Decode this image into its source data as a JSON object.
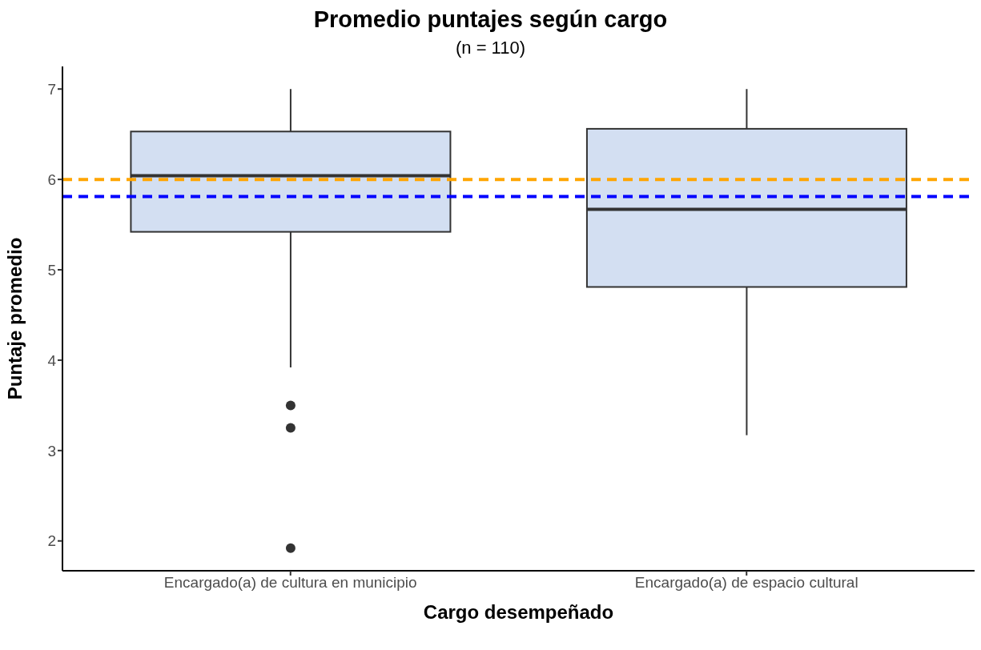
{
  "chart_data": {
    "type": "box",
    "title": "Promedio puntajes según cargo",
    "subtitle": "(n = 110)",
    "xlabel": "Cargo desempeñado",
    "ylabel": "Puntaje promedio",
    "categories": [
      "Encargado(a) de cultura en municipio",
      "Encargado(a) de espacio cultural"
    ],
    "boxes": [
      {
        "low": 3.92,
        "q1": 5.42,
        "median": 6.04,
        "q3": 6.53,
        "high": 7,
        "outliers": [
          3.5,
          3.25,
          1.92
        ]
      },
      {
        "low": 3.17,
        "q1": 4.81,
        "median": 5.67,
        "q3": 6.56,
        "high": 7
      }
    ],
    "color": "#d3dff2",
    "ylim": [
      1.67,
      7.25
    ],
    "yticks": [
      2,
      3,
      4,
      5,
      6,
      7
    ],
    "ref_lines": [
      {
        "axis": "y",
        "value": 6.0,
        "color": "#ffa500",
        "line_style": "dashed"
      },
      {
        "axis": "y",
        "value": 5.81,
        "color": "#0000ff",
        "line_style": "dashed"
      }
    ]
  }
}
